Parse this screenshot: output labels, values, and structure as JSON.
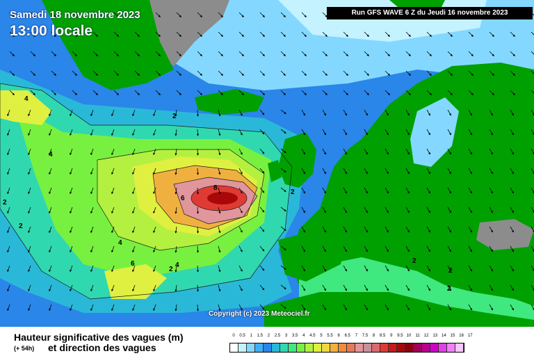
{
  "header": {
    "date": "Samedi 18 novembre 2023",
    "time": "13:00 locale",
    "run": "Run GFS WAVE 6 Z du Jeudi 16 novembre 2023"
  },
  "map": {
    "copyright": "Copyright (c) 2023 Meteociel.fr",
    "contour_labels": [
      "8",
      "6",
      "4",
      "4",
      "4",
      "4",
      "6",
      "2",
      "2",
      "2",
      "2",
      "2",
      "2",
      "2",
      "2"
    ]
  },
  "footer": {
    "title_line1": "Hauteur significative des vagues (m)",
    "lead": "(+ 54h)",
    "title_line2": "et direction des vagues"
  },
  "legend": {
    "ticks": [
      "0",
      "0.5",
      "1",
      "1.5",
      "2",
      "2.5",
      "3",
      "3.5",
      "4",
      "4.5",
      "5",
      "5.5",
      "6",
      "6.5",
      "7",
      "7.5",
      "8",
      "8.5",
      "9",
      "9.5",
      "10",
      "11",
      "12",
      "13",
      "14",
      "15",
      "16",
      "17"
    ],
    "colors": [
      "#ffffff",
      "#c4f2ff",
      "#84d8ff",
      "#3fb0f8",
      "#2a86e8",
      "#2ab8d8",
      "#30d8b0",
      "#40e880",
      "#78f040",
      "#b4f040",
      "#e0f040",
      "#f0d840",
      "#f0b040",
      "#f08c3c",
      "#e8785a",
      "#e0969c",
      "#c8909e",
      "#d86a70",
      "#e03a34",
      "#c81818",
      "#a80808",
      "#8c0010",
      "#a00058",
      "#b80090",
      "#d000c8",
      "#e040e8",
      "#f080f8",
      "#f8c8fc"
    ]
  },
  "colors": {
    "ocean_deep": "#2a86e8",
    "land": "#00a000",
    "ice": "#8c8c8c"
  }
}
